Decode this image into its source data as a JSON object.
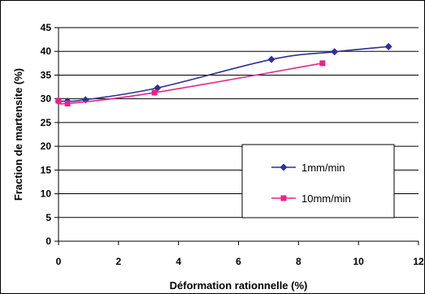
{
  "chart_data": {
    "type": "line",
    "title": "",
    "xlabel": "Déformation rationnelle (%)",
    "ylabel": "Fraction de martensite (%)",
    "xlim": [
      0,
      12
    ],
    "ylim": [
      0,
      45
    ],
    "x_ticks": [
      0,
      2,
      4,
      6,
      8,
      10,
      12
    ],
    "y_ticks": [
      0,
      5,
      10,
      15,
      20,
      25,
      30,
      35,
      40,
      45
    ],
    "grid": "horizontal",
    "legend_position": "right-center",
    "series": [
      {
        "name": "1mm/min",
        "marker": "diamond",
        "color": "#2E3192",
        "points": [
          {
            "x": 0.0,
            "y": 29.5
          },
          {
            "x": 0.3,
            "y": 29.5
          },
          {
            "x": 0.9,
            "y": 29.8
          },
          {
            "x": 3.3,
            "y": 32.3
          },
          {
            "x": 7.1,
            "y": 38.3
          },
          {
            "x": 9.2,
            "y": 39.9
          },
          {
            "x": 11.0,
            "y": 41.0
          }
        ]
      },
      {
        "name": "10mm/min",
        "marker": "square",
        "color": "#E6238A",
        "points": [
          {
            "x": 0.0,
            "y": 29.6
          },
          {
            "x": 0.3,
            "y": 29.0
          },
          {
            "x": 3.2,
            "y": 31.3
          },
          {
            "x": 8.8,
            "y": 37.5
          }
        ]
      }
    ]
  }
}
